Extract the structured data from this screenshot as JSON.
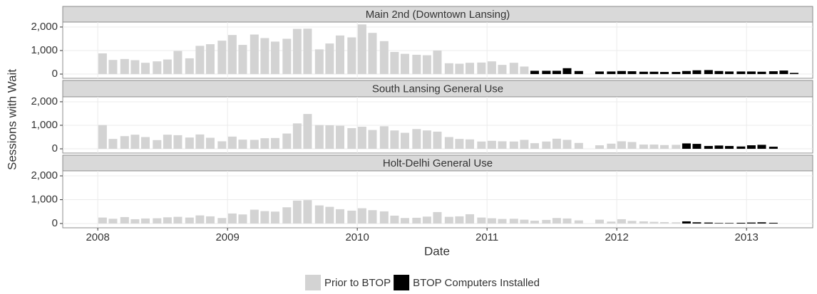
{
  "chart_data": {
    "type": "bar",
    "xlabel": "Date",
    "ylabel": "Sessions with Wait",
    "x": [
      2008,
      2008.08,
      2008.17,
      2008.25,
      2008.33,
      2008.42,
      2008.5,
      2008.58,
      2008.67,
      2008.75,
      2008.83,
      2008.92,
      2009,
      2009.08,
      2009.17,
      2009.25,
      2009.33,
      2009.42,
      2009.5,
      2009.58,
      2009.67,
      2009.75,
      2009.83,
      2009.92,
      2010,
      2010.08,
      2010.17,
      2010.25,
      2010.33,
      2010.42,
      2010.5,
      2010.58,
      2010.67,
      2010.75,
      2010.83,
      2010.92,
      2011,
      2011.08,
      2011.17,
      2011.25,
      2011.33,
      2011.42,
      2011.5,
      2011.58,
      2011.67,
      2011.75,
      2011.83,
      2011.92,
      2012,
      2012.08,
      2012.17,
      2012.25,
      2012.33,
      2012.42,
      2012.5,
      2012.58,
      2012.67,
      2012.75,
      2012.83,
      2012.92,
      2013,
      2013.08,
      2013.17,
      2013.25,
      2013.33
    ],
    "xlim": [
      2007.73,
      2013.51
    ],
    "xticks": [
      2008,
      2009,
      2010,
      2011,
      2012,
      2013
    ],
    "ylim": [
      -180,
      2210
    ],
    "yticks": [
      0,
      {
        "value": 1000,
        "label": "1,000"
      },
      {
        "value": 2000,
        "label": "2,000"
      }
    ],
    "grid": true,
    "series": [
      {
        "name": "Prior to BTOP",
        "color": "#d3d3d3"
      },
      {
        "name": "BTOP Computers Installed",
        "color": "#000000"
      }
    ],
    "facets": [
      {
        "title": "Main 2nd (Downtown Lansing)",
        "series": [
          {
            "values": [
              880,
              600,
              640,
              590,
              480,
              540,
              620,
              980,
              670,
              1200,
              1270,
              1420,
              1660,
              1240,
              1680,
              1530,
              1380,
              1500,
              1920,
              1930,
              1050,
              1300,
              1640,
              1560,
              2110,
              1750,
              1400,
              940,
              860,
              820,
              800,
              1000,
              460,
              440,
              480,
              490,
              540,
              390,
              480,
              320,
              null,
              null,
              null,
              null,
              null,
              null,
              null,
              null,
              null,
              null,
              null,
              null,
              null,
              null,
              null,
              null,
              null,
              null,
              null,
              null,
              null,
              null,
              null,
              null,
              null
            ]
          },
          {
            "values": [
              null,
              null,
              null,
              null,
              null,
              null,
              null,
              null,
              null,
              null,
              null,
              null,
              null,
              null,
              null,
              null,
              null,
              null,
              null,
              null,
              null,
              null,
              null,
              null,
              null,
              null,
              null,
              null,
              null,
              null,
              null,
              null,
              null,
              null,
              null,
              null,
              null,
              null,
              null,
              null,
              140,
              140,
              140,
              250,
              130,
              null,
              110,
              110,
              130,
              120,
              100,
              100,
              90,
              90,
              130,
              160,
              170,
              130,
              110,
              110,
              110,
              100,
              120,
              150,
              50
            ]
          }
        ]
      },
      {
        "title": "South Lansing General Use",
        "series": [
          {
            "values": [
              1010,
              420,
              540,
              600,
              500,
              370,
              600,
              580,
              480,
              610,
              470,
              320,
              520,
              390,
              380,
              450,
              460,
              650,
              1080,
              1480,
              1010,
              1000,
              980,
              880,
              940,
              800,
              960,
              780,
              680,
              840,
              780,
              730,
              500,
              420,
              400,
              310,
              340,
              320,
              310,
              380,
              240,
              310,
              430,
              380,
              250,
              null,
              150,
              220,
              320,
              290,
              180,
              180,
              160,
              170,
              null,
              null,
              null,
              null,
              null,
              null,
              null,
              null,
              null,
              null,
              null
            ]
          },
          {
            "values": [
              null,
              null,
              null,
              null,
              null,
              null,
              null,
              null,
              null,
              null,
              null,
              null,
              null,
              null,
              null,
              null,
              null,
              null,
              null,
              null,
              null,
              null,
              null,
              null,
              null,
              null,
              null,
              null,
              null,
              null,
              null,
              null,
              null,
              null,
              null,
              null,
              null,
              null,
              null,
              null,
              null,
              null,
              null,
              null,
              null,
              null,
              null,
              null,
              null,
              null,
              null,
              null,
              null,
              null,
              230,
              210,
              120,
              140,
              120,
              100,
              150,
              170,
              90,
              null,
              null
            ]
          }
        ]
      },
      {
        "title": "Holt-Delhi General Use",
        "series": [
          {
            "values": [
              250,
              200,
              270,
              180,
              210,
              220,
              260,
              280,
              250,
              340,
              300,
              230,
              420,
              380,
              580,
              520,
              500,
              680,
              960,
              980,
              760,
              700,
              600,
              540,
              640,
              560,
              510,
              330,
              230,
              240,
              290,
              480,
              280,
              300,
              390,
              250,
              220,
              190,
              200,
              160,
              120,
              150,
              230,
              210,
              130,
              null,
              160,
              80,
              180,
              110,
              90,
              70,
              60,
              50,
              null,
              null,
              null,
              null,
              null,
              null,
              null,
              null,
              null,
              null,
              null
            ]
          },
          {
            "values": [
              null,
              null,
              null,
              null,
              null,
              null,
              null,
              null,
              null,
              null,
              null,
              null,
              null,
              null,
              null,
              null,
              null,
              null,
              null,
              null,
              null,
              null,
              null,
              null,
              null,
              null,
              null,
              null,
              null,
              null,
              null,
              null,
              null,
              null,
              null,
              null,
              null,
              null,
              null,
              null,
              null,
              null,
              null,
              null,
              null,
              null,
              null,
              null,
              null,
              null,
              null,
              null,
              null,
              null,
              90,
              50,
              40,
              20,
              20,
              30,
              40,
              50,
              30,
              null,
              null
            ]
          }
        ]
      }
    ]
  }
}
